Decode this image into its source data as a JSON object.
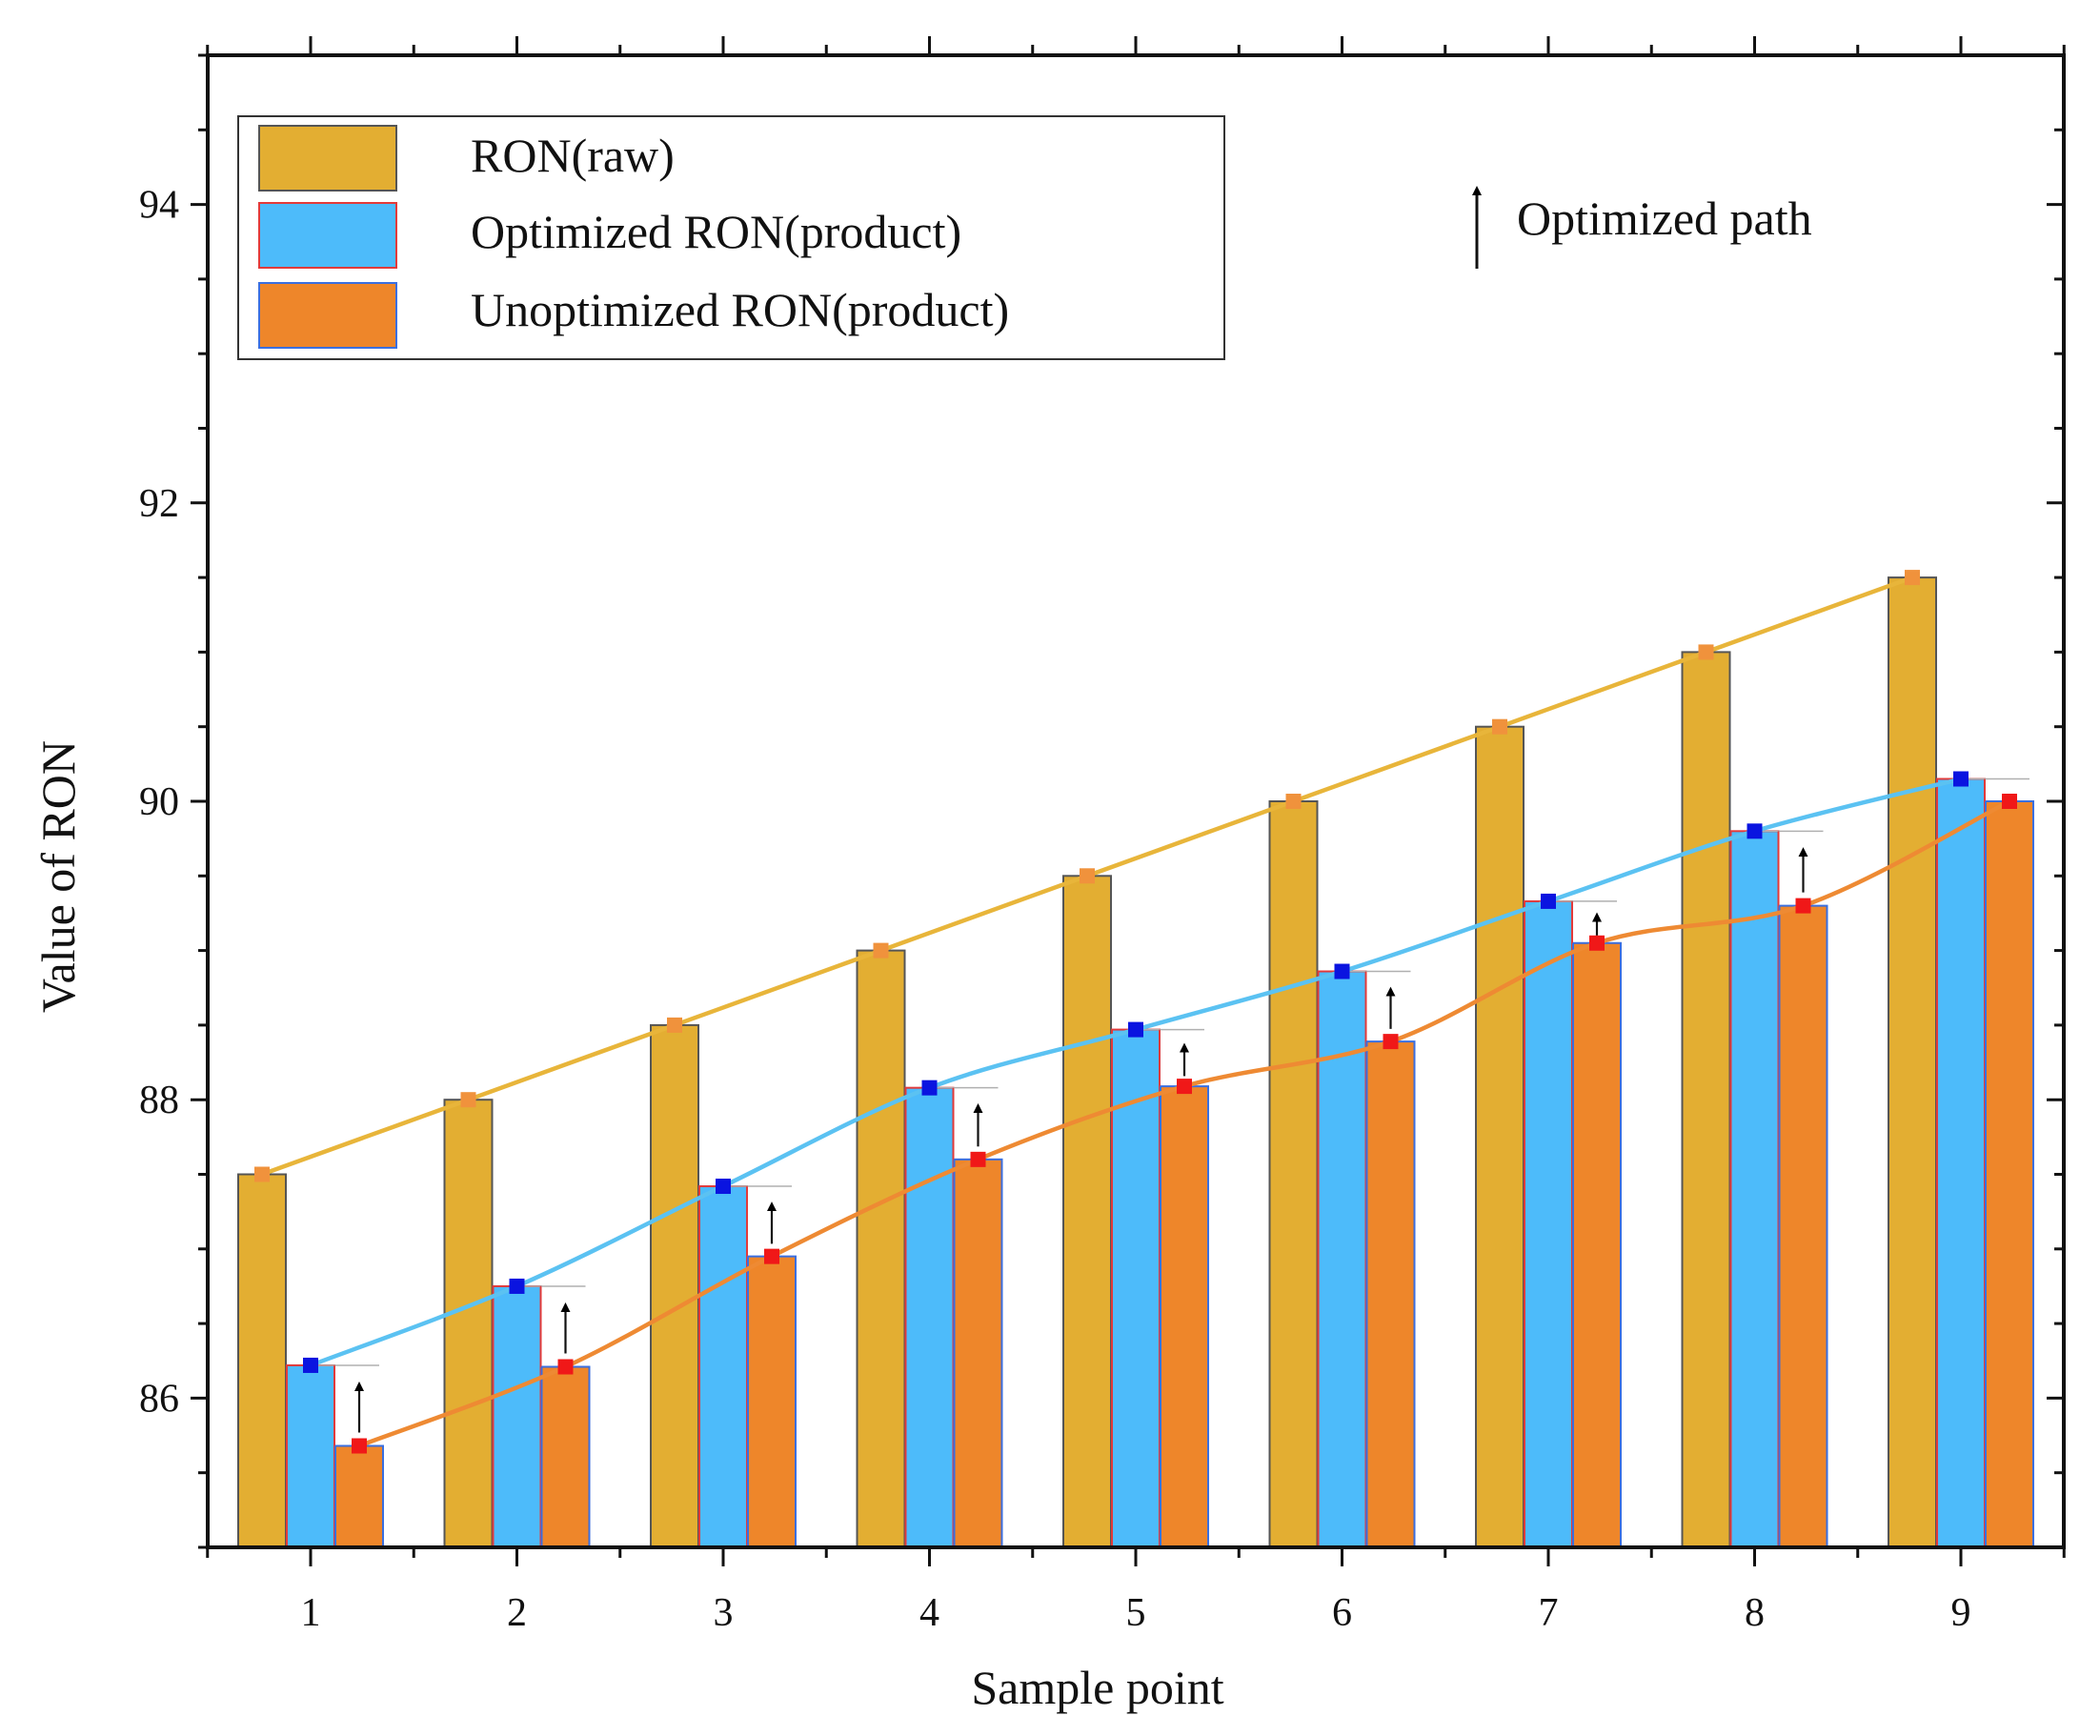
{
  "chart_data": {
    "type": "bar",
    "xlabel": "Sample point",
    "ylabel": "Value of RON",
    "ylim": [
      85.0,
      95.0
    ],
    "yticks": [
      86,
      88,
      90,
      92,
      94
    ],
    "categories": [
      "1",
      "2",
      "3",
      "4",
      "5",
      "6",
      "7",
      "8",
      "9"
    ],
    "series": [
      {
        "name": "RON(raw)",
        "values": [
          87.5,
          88.0,
          88.5,
          89.0,
          89.5,
          90.0,
          90.5,
          91.0,
          91.5
        ],
        "color": "#E3AE32",
        "line_color": "#E8B53A",
        "marker_color": "#F0923C"
      },
      {
        "name": "Optimized RON(product)",
        "values": [
          86.22,
          86.75,
          87.42,
          88.08,
          88.47,
          88.86,
          89.33,
          89.8,
          90.15
        ],
        "color": "#4DBBFA",
        "line_color": "#5BC2F2",
        "marker_color": "#0A14E0"
      },
      {
        "name": "Unoptimized RON(product)",
        "values": [
          85.68,
          86.21,
          86.95,
          87.6,
          88.09,
          88.39,
          89.05,
          89.3,
          90.0
        ],
        "color": "#EE862A",
        "line_color": "#EE8A33",
        "marker_color": "#F01818"
      }
    ],
    "annotation": {
      "label": "Optimized path"
    },
    "legend_position": "top-left",
    "grid": false
  }
}
